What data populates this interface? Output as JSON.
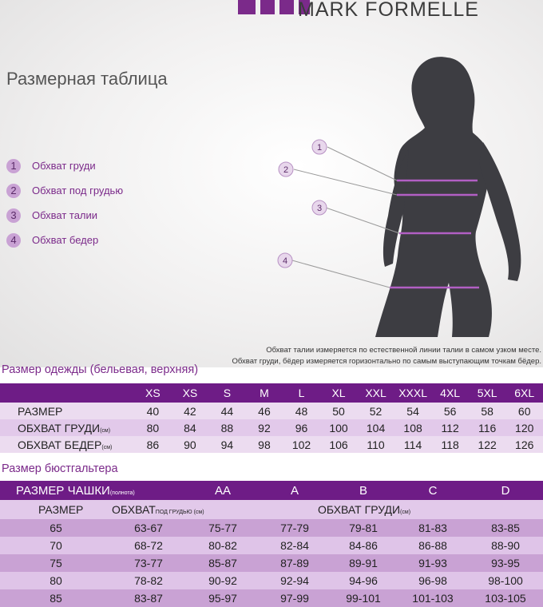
{
  "brand": {
    "name": "MARK FORMELLE",
    "color": "#7b2a8a"
  },
  "title": "Размерная таблица",
  "legend": [
    {
      "num": "1",
      "label": "Обхват груди"
    },
    {
      "num": "2",
      "label": "Обхват под грудью"
    },
    {
      "num": "3",
      "label": "Обхват талии"
    },
    {
      "num": "4",
      "label": "Обхват бедер"
    }
  ],
  "notes": [
    "Обхват талии измеряется по естественной линии талии в самом узком месте.",
    "Обхват груди, бёдер измеряется горизонтально по самым выступающим точкам бёдер."
  ],
  "clothing": {
    "title": "Размер одежды (бельевая, верхняя)",
    "sizes": [
      "XS",
      "XS",
      "S",
      "M",
      "L",
      "XL",
      "XXL",
      "XXXL",
      "4XL",
      "5XL",
      "6XL"
    ],
    "rows": [
      {
        "label": "РАЗМЕР",
        "unit": "",
        "values": [
          "40",
          "42",
          "44",
          "46",
          "48",
          "50",
          "52",
          "54",
          "56",
          "58",
          "60"
        ]
      },
      {
        "label": "ОБХВАТ ГРУДИ",
        "unit": "(см)",
        "values": [
          "80",
          "84",
          "88",
          "92",
          "96",
          "100",
          "104",
          "108",
          "112",
          "116",
          "120"
        ]
      },
      {
        "label": "ОБХВАТ БЕДЕР",
        "unit": "(см)",
        "values": [
          "86",
          "90",
          "94",
          "98",
          "102",
          "106",
          "110",
          "114",
          "118",
          "122",
          "126"
        ]
      }
    ]
  },
  "bra": {
    "title": "Размер бюстгальтера",
    "cup_label": "РАЗМЕР ЧАШКИ",
    "cup_unit": "(полнота)",
    "cups": [
      "AA",
      "A",
      "B",
      "C",
      "D"
    ],
    "size_label": "РАЗМЕР",
    "under_label": "ОБХВАТ",
    "under_unit": "ПОД ГРУДЬЮ (см)",
    "bust_label": "ОБХВАТ ГРУДИ",
    "bust_unit": "(см)",
    "rows": [
      {
        "size": "65",
        "under": "63-67",
        "values": [
          "75-77",
          "77-79",
          "79-81",
          "81-83",
          "83-85"
        ]
      },
      {
        "size": "70",
        "under": "68-72",
        "values": [
          "80-82",
          "82-84",
          "84-86",
          "86-88",
          "88-90"
        ]
      },
      {
        "size": "75",
        "under": "73-77",
        "values": [
          "85-87",
          "87-89",
          "89-91",
          "91-93",
          "93-95"
        ]
      },
      {
        "size": "80",
        "under": "78-82",
        "values": [
          "90-92",
          "92-94",
          "94-96",
          "96-98",
          "98-100"
        ]
      },
      {
        "size": "85",
        "under": "83-87",
        "values": [
          "95-97",
          "97-99",
          "99-101",
          "101-103",
          "103-105"
        ]
      }
    ]
  }
}
